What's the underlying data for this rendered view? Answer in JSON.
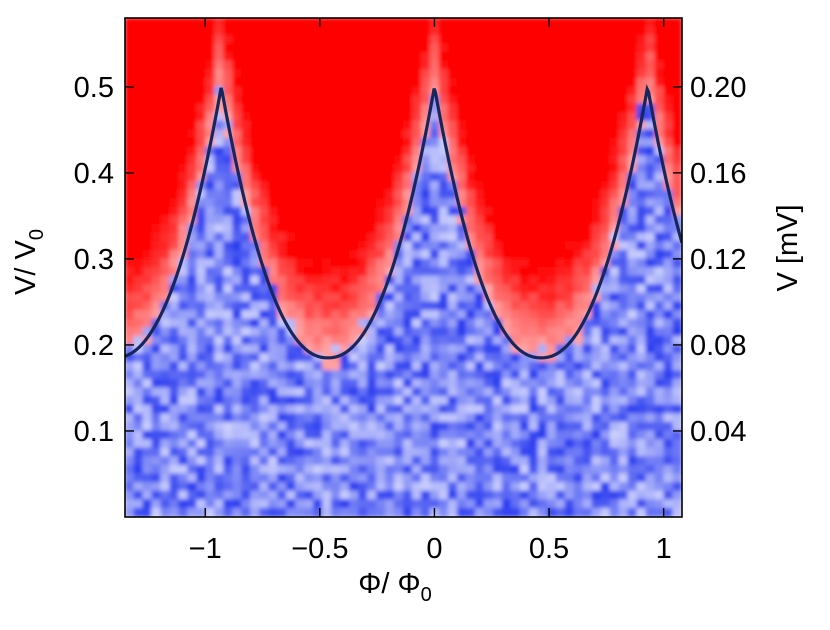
{
  "chart_data": {
    "type": "heatmap",
    "title": "",
    "xlabel": "Φ/ Φ",
    "xlabel_sub": "0",
    "ylabel_left": "V/ V",
    "ylabel_left_sub": "0",
    "ylabel_right": "V [mV]",
    "xlim": [
      -1.35,
      1.08
    ],
    "ylim_left": [
      0.0,
      0.58
    ],
    "ylim_right_mV": [
      0.0,
      0.232
    ],
    "x_ticks": [
      -1,
      -0.5,
      0,
      0.5,
      1
    ],
    "x_tick_labels": [
      "−1",
      "−0.5",
      "0",
      "0.5",
      "1"
    ],
    "y_left_ticks": [
      0.1,
      0.2,
      0.3,
      0.4,
      0.5
    ],
    "y_left_tick_labels": [
      "0.1",
      "0.2",
      "0.3",
      "0.4",
      "0.5"
    ],
    "y_right_ticks": [
      0.04,
      0.08,
      0.12,
      0.16,
      0.2
    ],
    "y_right_tick_labels": [
      "0.04",
      "0.08",
      "0.12",
      "0.16",
      "0.20"
    ],
    "heatmap": {
      "low_color": "#2a3cf0",
      "high_color": "#ff0000",
      "mid_color": "#ffffff",
      "boundary_curve_equation": "V/V0 = 0.185 + 0.315*(1-|phase|)^2 approx, with period 0.93 in Φ/Φ0"
    },
    "series": [
      {
        "type": "line",
        "color": "#16275c",
        "x": [
          -1.35,
          -1.3,
          -1.2,
          -1.1,
          -1.0,
          -0.93,
          -0.85,
          -0.75,
          -0.65,
          -0.55,
          -0.465,
          -0.38,
          -0.28,
          -0.18,
          -0.08,
          0.0,
          0.08,
          0.18,
          0.28,
          0.38,
          0.465,
          0.55,
          0.65,
          0.75,
          0.85,
          0.93,
          1.0,
          1.08
        ],
        "y": [
          0.185,
          0.19,
          0.22,
          0.29,
          0.39,
          0.5,
          0.39,
          0.29,
          0.225,
          0.19,
          0.185,
          0.19,
          0.225,
          0.29,
          0.39,
          0.5,
          0.39,
          0.29,
          0.225,
          0.19,
          0.185,
          0.19,
          0.225,
          0.29,
          0.39,
          0.5,
          0.39,
          0.31
        ]
      }
    ]
  }
}
